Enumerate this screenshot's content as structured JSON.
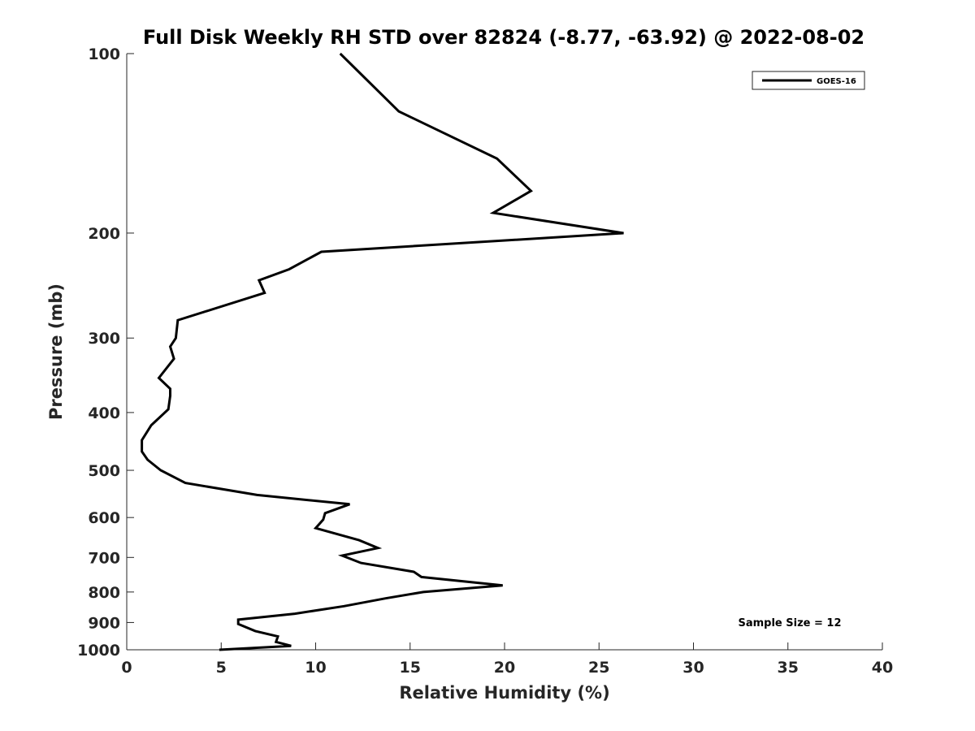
{
  "chart_data": {
    "type": "line",
    "title": "Full Disk Weekly RH STD over 82824 (-8.77, -63.92) @ 2022-08-02",
    "xlabel": "Relative Humidity (%)",
    "ylabel": "Pressure (mb)",
    "xlim": [
      0,
      40
    ],
    "ylim": [
      100,
      1000
    ],
    "yscale": "log",
    "yreversed": true,
    "grid": false,
    "legend_position": "top-right",
    "x_ticks": [
      "0",
      "5",
      "10",
      "15",
      "20",
      "25",
      "30",
      "35",
      "40"
    ],
    "y_ticks": [
      "100",
      "200",
      "300",
      "400",
      "500",
      "600",
      "700",
      "800",
      "900",
      "1000"
    ],
    "annotation": "Sample Size = 12",
    "series": [
      {
        "name": "GOES-16",
        "color": "#000000",
        "points": [
          [
            11.3,
            100
          ],
          [
            14.4,
            125
          ],
          [
            19.6,
            150
          ],
          [
            21.4,
            170
          ],
          [
            19.4,
            185
          ],
          [
            26.3,
            200
          ],
          [
            10.3,
            215
          ],
          [
            8.6,
            230
          ],
          [
            7.0,
            240
          ],
          [
            7.3,
            252
          ],
          [
            2.7,
            280
          ],
          [
            2.6,
            300
          ],
          [
            2.3,
            310
          ],
          [
            2.5,
            325
          ],
          [
            1.7,
            350
          ],
          [
            2.3,
            365
          ],
          [
            2.3,
            375
          ],
          [
            2.2,
            395
          ],
          [
            1.3,
            420
          ],
          [
            0.8,
            445
          ],
          [
            0.8,
            465
          ],
          [
            1.1,
            480
          ],
          [
            1.8,
            500
          ],
          [
            3.1,
            525
          ],
          [
            6.9,
            550
          ],
          [
            11.8,
            570
          ],
          [
            10.5,
            590
          ],
          [
            10.4,
            605
          ],
          [
            10.0,
            625
          ],
          [
            12.3,
            655
          ],
          [
            13.3,
            675
          ],
          [
            11.4,
            695
          ],
          [
            12.4,
            715
          ],
          [
            15.2,
            740
          ],
          [
            15.6,
            755
          ],
          [
            19.9,
            780
          ],
          [
            15.7,
            800
          ],
          [
            13.7,
            820
          ],
          [
            11.5,
            845
          ],
          [
            8.9,
            870
          ],
          [
            5.9,
            890
          ],
          [
            5.9,
            905
          ],
          [
            6.8,
            930
          ],
          [
            8.0,
            950
          ],
          [
            7.9,
            970
          ],
          [
            8.7,
            985
          ],
          [
            4.9,
            1000
          ]
        ]
      }
    ]
  }
}
